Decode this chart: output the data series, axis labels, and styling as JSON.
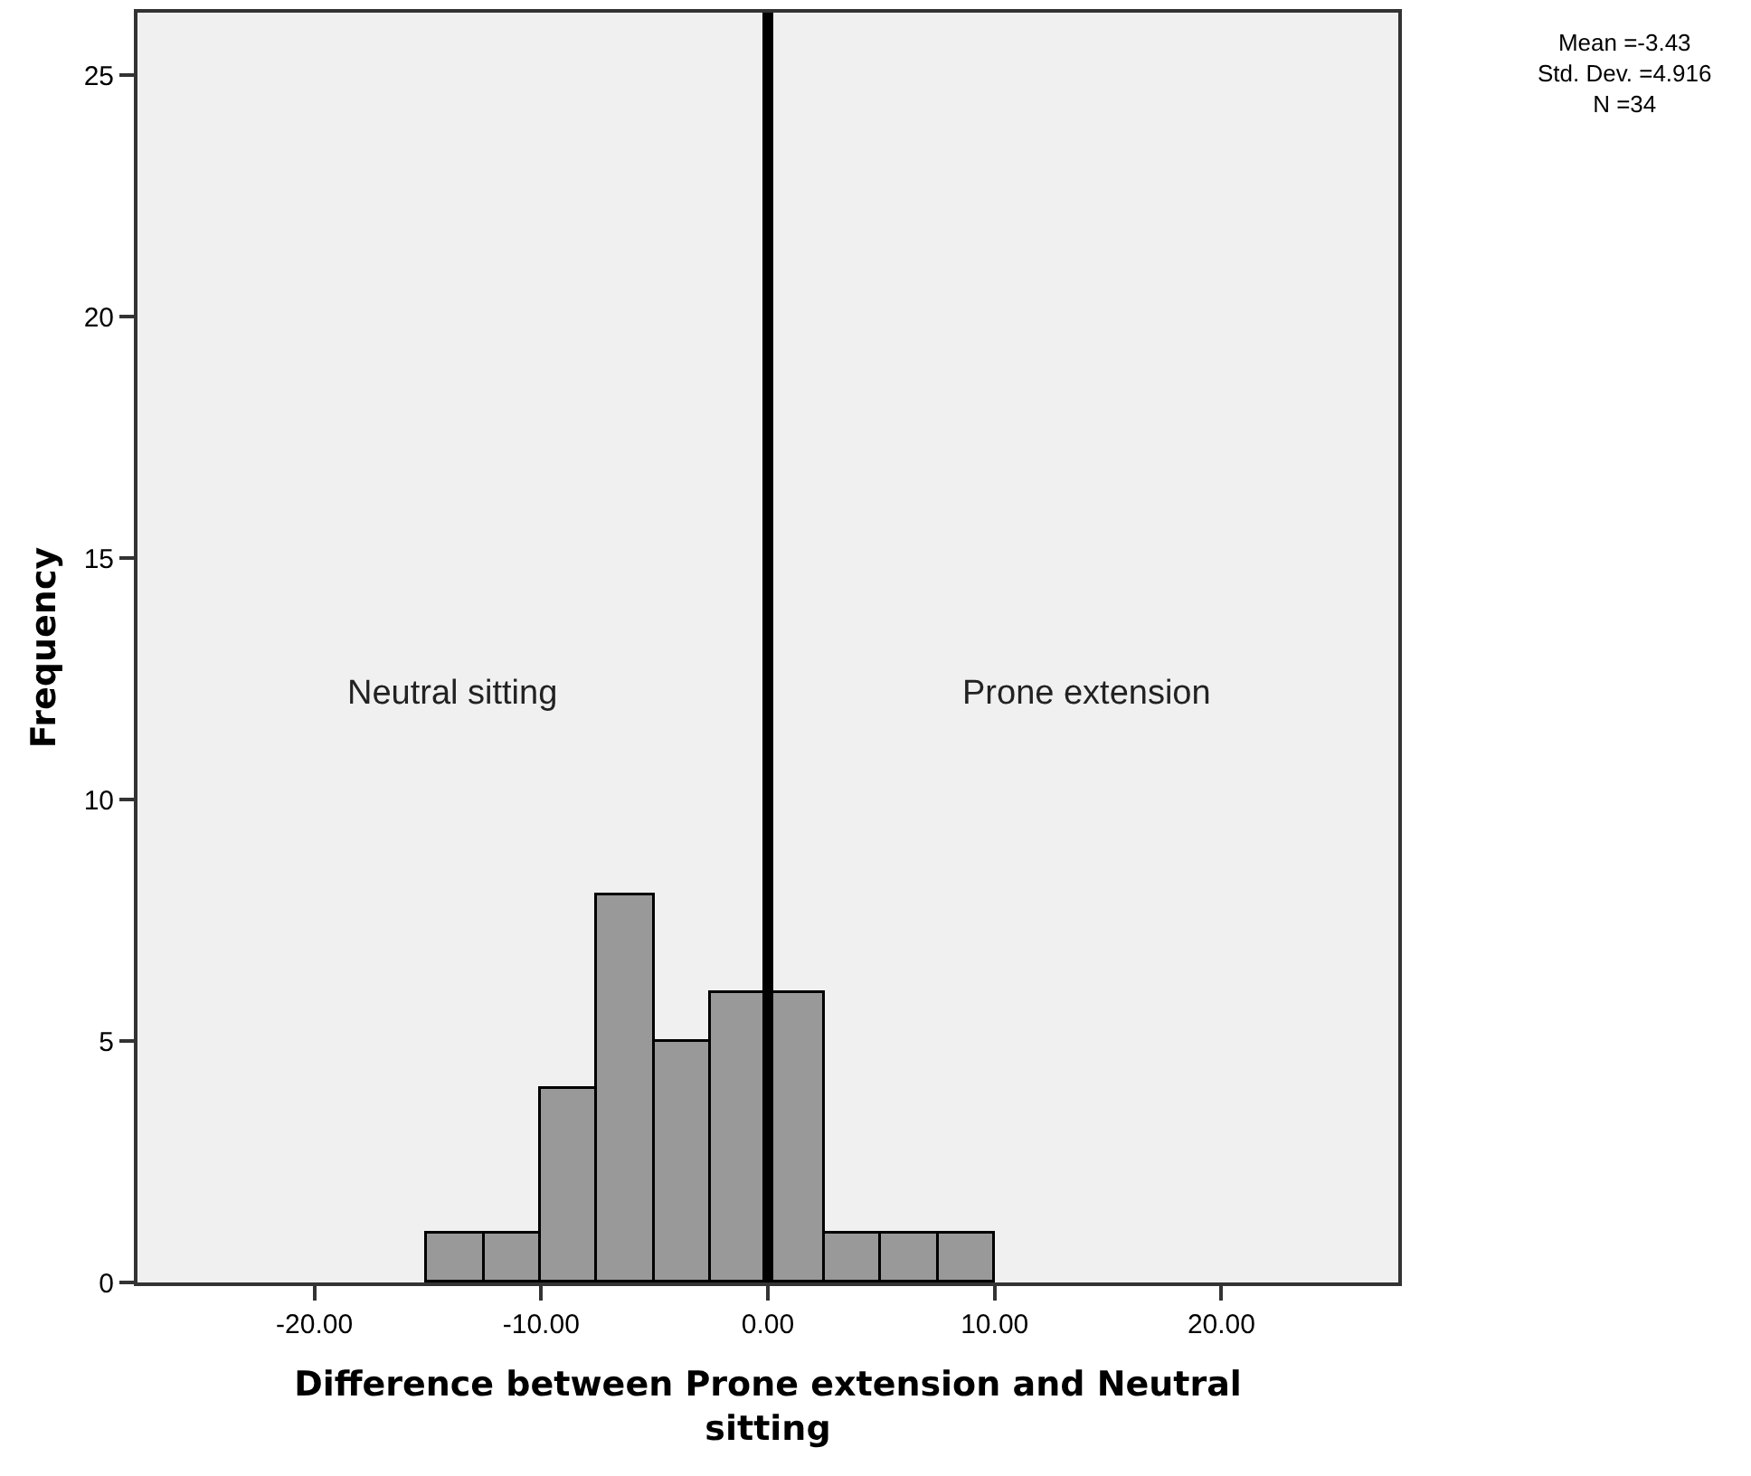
{
  "chart_data": {
    "type": "histogram",
    "xlabel": "Difference between Prone extension and Neutral sitting",
    "ylabel": "Frequency",
    "bins": [
      -15,
      -12.5,
      -10,
      -7.5,
      -5,
      -2.5,
      0,
      2.5,
      5,
      7.5,
      10
    ],
    "values": [
      1,
      1,
      4,
      8,
      5,
      6,
      6,
      1,
      1,
      1
    ],
    "color": "#999999",
    "xlim": [
      -27.8,
      27.8
    ],
    "xticks": [
      {
        "value": -20,
        "label": "-20.00"
      },
      {
        "value": -10,
        "label": "-10.00"
      },
      {
        "value": 0,
        "label": "0.00"
      },
      {
        "value": 10,
        "label": "10.00"
      },
      {
        "value": 20,
        "label": "20.00"
      }
    ],
    "ylim": [
      0,
      26.3
    ],
    "yticks": [
      0,
      5,
      10,
      15,
      20,
      25
    ],
    "grid": false,
    "ref_lines": [
      {
        "axis": "x",
        "value": 0,
        "color": "#000000"
      }
    ],
    "annotations": [
      "Neutral sitting",
      "Prone extension",
      "Mean =-3.43\nStd. Dev. =4.916\nN =34"
    ]
  }
}
